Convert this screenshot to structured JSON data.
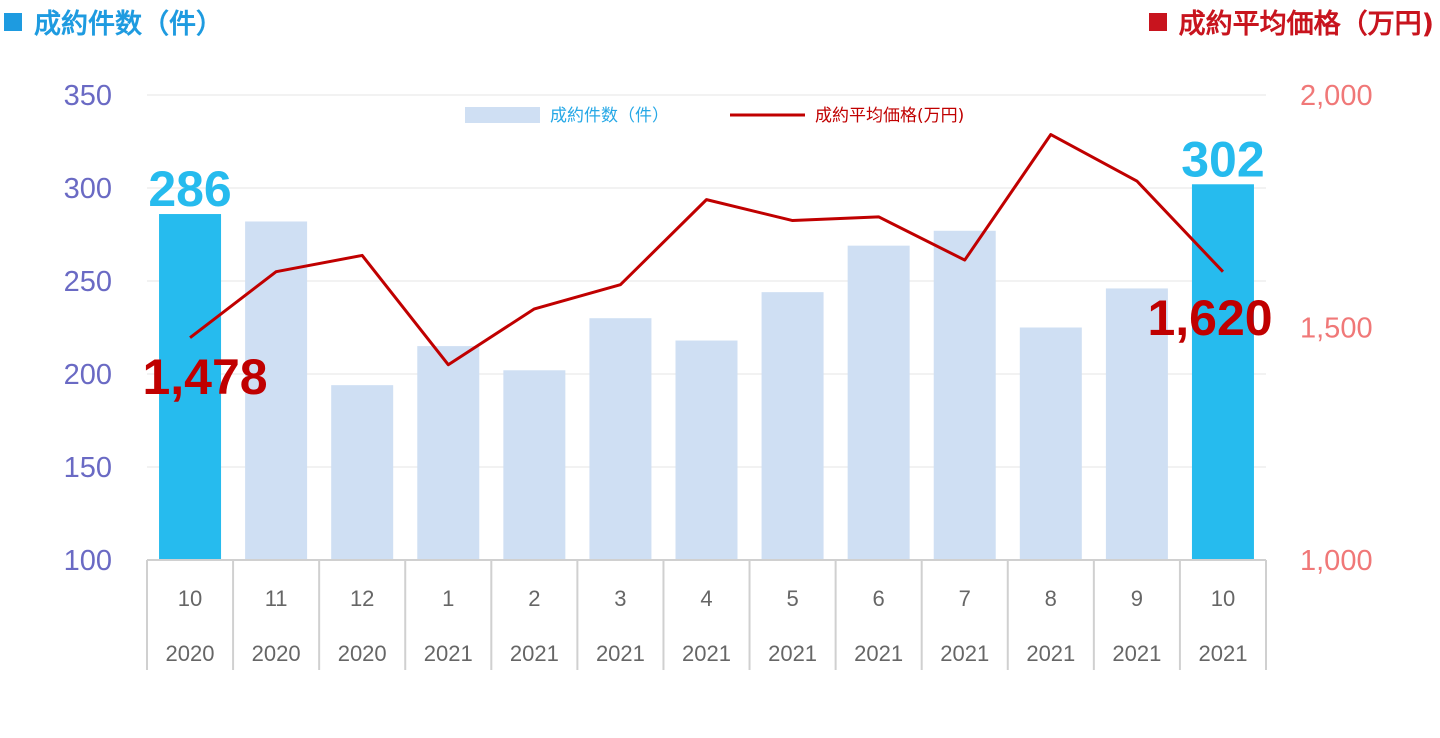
{
  "header": {
    "left_title": "成約件数（件）",
    "right_title": "成約平均価格（万円)"
  },
  "colors": {
    "bar": "#cfdff3",
    "bar_highlight": "#26bbee",
    "line": "#c00000",
    "left_axis": "#6a6ac4",
    "right_axis": "#f07878"
  },
  "chart_data": {
    "type": "bar",
    "categories": [
      {
        "month": "10",
        "year": "2020"
      },
      {
        "month": "11",
        "year": "2020"
      },
      {
        "month": "12",
        "year": "2020"
      },
      {
        "month": "1",
        "year": "2021"
      },
      {
        "month": "2",
        "year": "2021"
      },
      {
        "month": "3",
        "year": "2021"
      },
      {
        "month": "4",
        "year": "2021"
      },
      {
        "month": "5",
        "year": "2021"
      },
      {
        "month": "6",
        "year": "2021"
      },
      {
        "month": "7",
        "year": "2021"
      },
      {
        "month": "8",
        "year": "2021"
      },
      {
        "month": "9",
        "year": "2021"
      },
      {
        "month": "10",
        "year": "2021"
      }
    ],
    "series": [
      {
        "name": "成約件数（件）",
        "type": "bar",
        "axis": "left",
        "values": [
          286,
          282,
          194,
          215,
          202,
          230,
          218,
          244,
          269,
          277,
          225,
          246,
          302
        ],
        "highlight": [
          true,
          false,
          false,
          false,
          false,
          false,
          false,
          false,
          false,
          false,
          false,
          false,
          true
        ]
      },
      {
        "name": "成約平均価格(万円)",
        "type": "line",
        "axis": "right",
        "values": [
          1478,
          1620,
          1655,
          1420,
          1540,
          1592,
          1775,
          1730,
          1738,
          1645,
          1915,
          1815,
          1620
        ]
      }
    ],
    "y_left": {
      "min": 100,
      "max": 350,
      "ticks": [
        "100",
        "150",
        "200",
        "250",
        "300",
        "350"
      ]
    },
    "y_right": {
      "min": 1000,
      "max": 2000,
      "ticks": [
        "1,000",
        "1,500",
        "2,000"
      ]
    },
    "annotations": {
      "first_count": "286",
      "last_count": "302",
      "first_price": "1,478",
      "last_price": "1,620"
    },
    "legend_position": "top-center",
    "grid": true
  }
}
